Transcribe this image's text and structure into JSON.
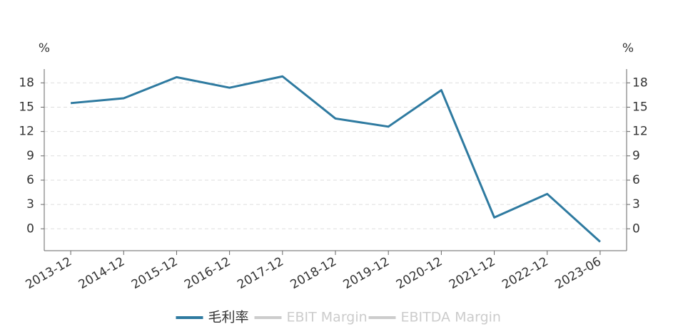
{
  "chart_data": {
    "type": "line",
    "y_label": "%",
    "y2_label": "%",
    "categories": [
      "2013-12",
      "2014-12",
      "2015-12",
      "2016-12",
      "2017-12",
      "2018-12",
      "2019-12",
      "2020-12",
      "2021-12",
      "2022-12",
      "2023-06"
    ],
    "series": [
      {
        "name": "毛利率",
        "color": "#2e7aa0",
        "values": [
          15.5,
          16.1,
          18.7,
          17.4,
          18.8,
          13.6,
          12.6,
          17.1,
          1.4,
          4.3,
          -1.6
        ]
      },
      {
        "name": "EBIT Margin",
        "color": "#cccccc",
        "hidden": true,
        "values": [
          null,
          null,
          null,
          null,
          null,
          null,
          null,
          null,
          null,
          null,
          null
        ]
      },
      {
        "name": "EBITDA Margin",
        "color": "#cccccc",
        "hidden": true,
        "values": [
          null,
          null,
          null,
          null,
          null,
          null,
          null,
          null,
          null,
          null,
          null
        ]
      }
    ],
    "ylim": [
      -2.7,
      19.7
    ],
    "yticks": [
      0,
      3,
      6,
      9,
      12,
      15,
      18
    ],
    "y2lim": [
      -2.7,
      19.7
    ],
    "y2ticks": [
      0,
      3,
      6,
      9,
      12,
      15,
      18
    ],
    "grid": true,
    "legend": "bottom"
  }
}
